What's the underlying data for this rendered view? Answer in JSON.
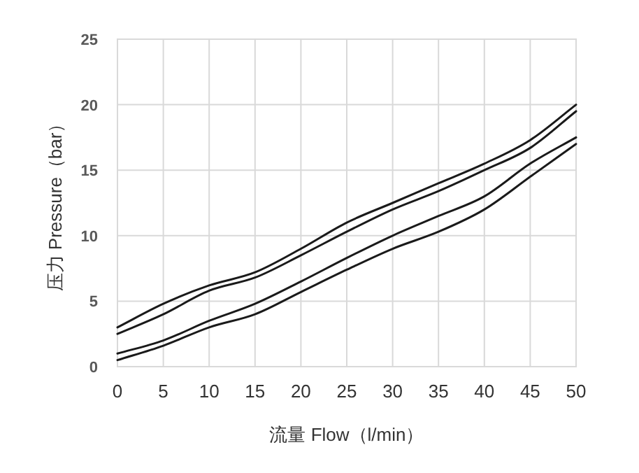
{
  "chart_data": {
    "type": "line",
    "xlabel": "流量 Flow（l/min）",
    "ylabel": "压力 Pressure（bar）",
    "x": [
      0,
      5,
      10,
      15,
      20,
      25,
      30,
      35,
      40,
      45,
      50
    ],
    "series": [
      {
        "color": "#1a1a1a",
        "values": [
          3,
          4.8,
          6.2,
          7.2,
          9,
          11,
          12.5,
          14,
          15.5,
          17.3,
          20
        ]
      },
      {
        "color": "#1a1a1a",
        "values": [
          2.5,
          4,
          5.8,
          6.8,
          8.5,
          10.3,
          12,
          13.4,
          15,
          16.7,
          19.5
        ]
      },
      {
        "color": "#1a1a1a",
        "values": [
          1,
          2,
          3.5,
          4.8,
          6.5,
          8.3,
          10,
          11.5,
          13,
          15.5,
          17.5
        ]
      },
      {
        "color": "#1a1a1a",
        "values": [
          0.5,
          1.6,
          3,
          4,
          5.7,
          7.4,
          9,
          10.3,
          12,
          14.5,
          17
        ]
      }
    ],
    "xlim": [
      0,
      50
    ],
    "xticks": [
      0,
      5,
      10,
      15,
      20,
      25,
      30,
      35,
      40,
      45,
      50
    ],
    "ylim": [
      0,
      25
    ],
    "yticks": [
      0,
      5,
      10,
      15,
      20,
      25
    ],
    "grid": true,
    "marker": "none",
    "line_style": "solid"
  }
}
